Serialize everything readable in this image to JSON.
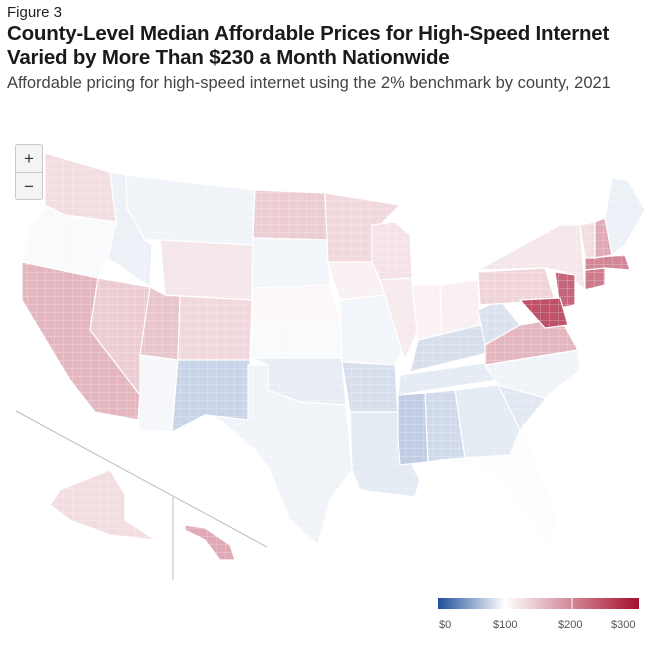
{
  "figure_label": "Figure 3",
  "title": "County-Level Median Affordable Prices for High-Speed Internet Varied by More Than $230 a Month Nationwide",
  "subtitle": "Affordable pricing for high-speed internet using the 2% benchmark by county, 2021",
  "zoom_controls": {
    "zoom_in": "+",
    "zoom_out": "−"
  },
  "legend": {
    "ticks": [
      "$0",
      "$100",
      "$200",
      "$300"
    ],
    "min": 0,
    "mid": 100,
    "max": 300,
    "colors": {
      "low": "#1f4e9c",
      "mid": "#ffffff",
      "high": "#a50f2e"
    },
    "no_data": "#b0b0b0"
  },
  "regions": [
    {
      "name": "Washington",
      "value": 115
    },
    {
      "name": "Oregon",
      "value": 95
    },
    {
      "name": "California",
      "value": 140
    },
    {
      "name": "Nevada",
      "value": 125
    },
    {
      "name": "Idaho",
      "value": 85
    },
    {
      "name": "Montana",
      "value": 88
    },
    {
      "name": "Wyoming",
      "value": 110
    },
    {
      "name": "Utah",
      "value": 130
    },
    {
      "name": "Arizona",
      "value": 92
    },
    {
      "name": "Colorado",
      "value": 118
    },
    {
      "name": "New Mexico",
      "value": 60
    },
    {
      "name": "North Dakota",
      "value": 125
    },
    {
      "name": "South Dakota",
      "value": 90
    },
    {
      "name": "Nebraska",
      "value": 102
    },
    {
      "name": "Kansas",
      "value": 95
    },
    {
      "name": "Oklahoma",
      "value": 82
    },
    {
      "name": "Texas",
      "value": 88
    },
    {
      "name": "Minnesota",
      "value": 118
    },
    {
      "name": "Iowa",
      "value": 105
    },
    {
      "name": "Missouri",
      "value": 90
    },
    {
      "name": "Arkansas",
      "value": 70
    },
    {
      "name": "Louisiana",
      "value": 80
    },
    {
      "name": "Wisconsin",
      "value": 112
    },
    {
      "name": "Illinois",
      "value": 108
    },
    {
      "name": "Michigan",
      "value": 100
    },
    {
      "name": "Indiana",
      "value": 104
    },
    {
      "name": "Ohio",
      "value": 106
    },
    {
      "name": "Kentucky",
      "value": 70
    },
    {
      "name": "Tennessee",
      "value": 80
    },
    {
      "name": "Mississippi",
      "value": 55
    },
    {
      "name": "Alabama",
      "value": 65
    },
    {
      "name": "Georgia",
      "value": 80
    },
    {
      "name": "Florida",
      "value": 98
    },
    {
      "name": "South Carolina",
      "value": 78
    },
    {
      "name": "North Carolina",
      "value": 88
    },
    {
      "name": "Virginia",
      "value": 140
    },
    {
      "name": "West Virginia",
      "value": 72
    },
    {
      "name": "Pennsylvania",
      "value": 120
    },
    {
      "name": "New York",
      "value": 110
    },
    {
      "name": "New Jersey",
      "value": 210
    },
    {
      "name": "Maryland",
      "value": 230
    },
    {
      "name": "Connecticut",
      "value": 190
    },
    {
      "name": "Massachusetts",
      "value": 180
    },
    {
      "name": "Vermont",
      "value": 115
    },
    {
      "name": "New Hampshire",
      "value": 150
    },
    {
      "name": "Maine",
      "value": 85
    },
    {
      "name": "Alaska",
      "value": 115
    },
    {
      "name": "Hawaii",
      "value": 150
    }
  ]
}
